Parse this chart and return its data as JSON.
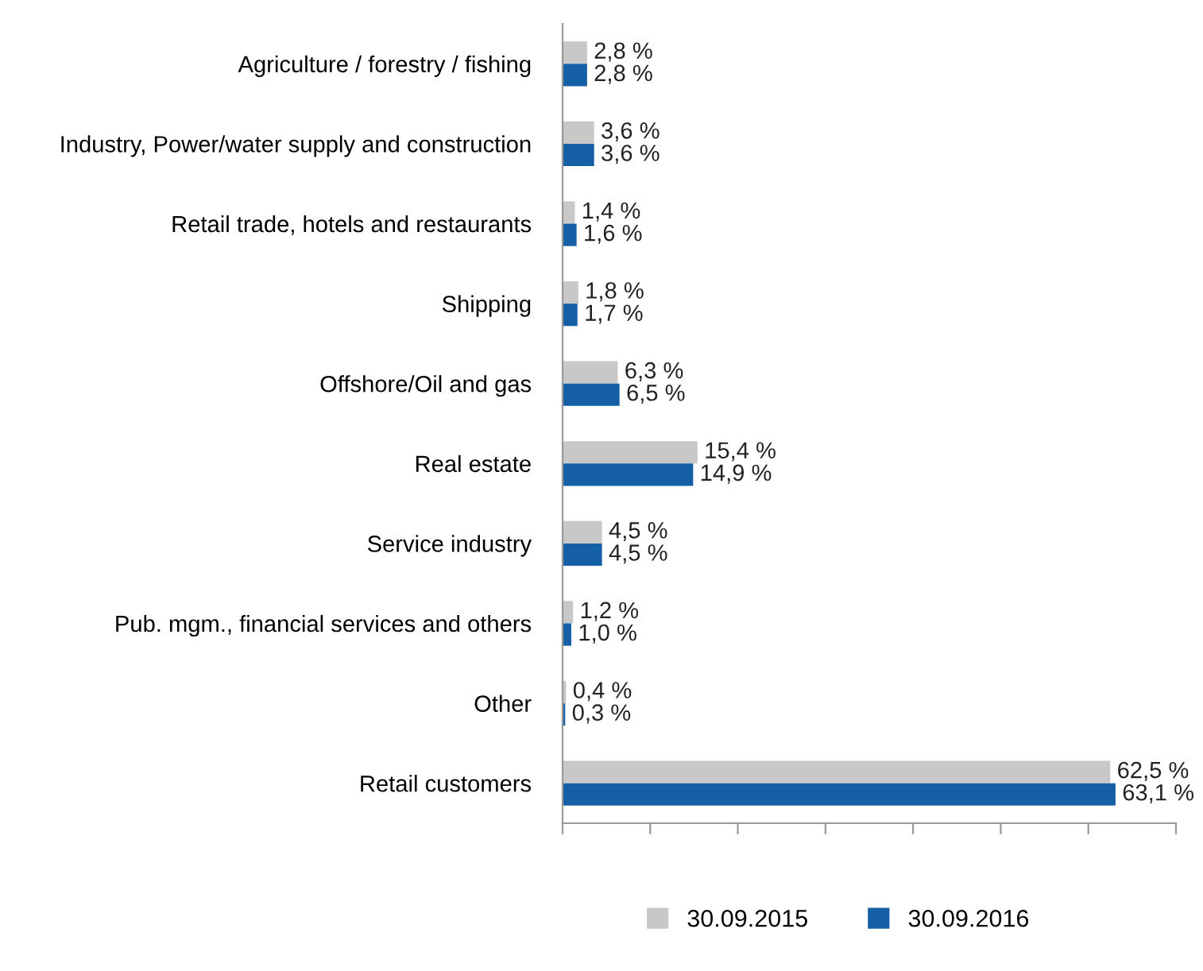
{
  "chart_data": {
    "type": "bar",
    "orientation": "horizontal",
    "categories": [
      "Agriculture / forestry / fishing",
      "Industry, Power/water supply and construction",
      "Retail trade, hotels and restaurants",
      "Shipping",
      "Offshore/Oil and gas",
      "Real estate",
      "Service industry",
      "Pub. mgm., financial services and others",
      "Other",
      "Retail customers"
    ],
    "series": [
      {
        "name": "30.09.2015",
        "color": "#c8c8c8",
        "values": [
          2.8,
          3.6,
          1.4,
          1.8,
          6.3,
          15.4,
          4.5,
          1.2,
          0.4,
          62.5
        ],
        "value_labels": [
          "2,8 %",
          "3,6 %",
          "1,4 %",
          "1,8 %",
          "6,3 %",
          "15,4 %",
          "4,5 %",
          "1,2 %",
          "0,4 %",
          "62,5 %"
        ]
      },
      {
        "name": "30.09.2016",
        "color": "#1560a4",
        "values": [
          2.8,
          3.6,
          1.6,
          1.7,
          6.5,
          14.9,
          4.5,
          1.0,
          0.3,
          63.1
        ],
        "value_labels": [
          "2,8 %",
          "3,6 %",
          "1,6 %",
          "1,7 %",
          "6,5 %",
          "14,9 %",
          "4,5 %",
          "1,0 %",
          "0,3 %",
          "63,1 %"
        ]
      }
    ],
    "xlim": [
      0,
      70
    ],
    "xticks": [
      {
        "value": 0,
        "label": null
      },
      {
        "value": 10,
        "label": null
      },
      {
        "value": 20,
        "label": null
      },
      {
        "value": 30,
        "label": null
      },
      {
        "value": 40,
        "label": null
      },
      {
        "value": 50,
        "label": null
      },
      {
        "value": 60,
        "label": null
      },
      {
        "value": 70,
        "label": null
      }
    ],
    "grid": false,
    "legend": "bottom"
  }
}
